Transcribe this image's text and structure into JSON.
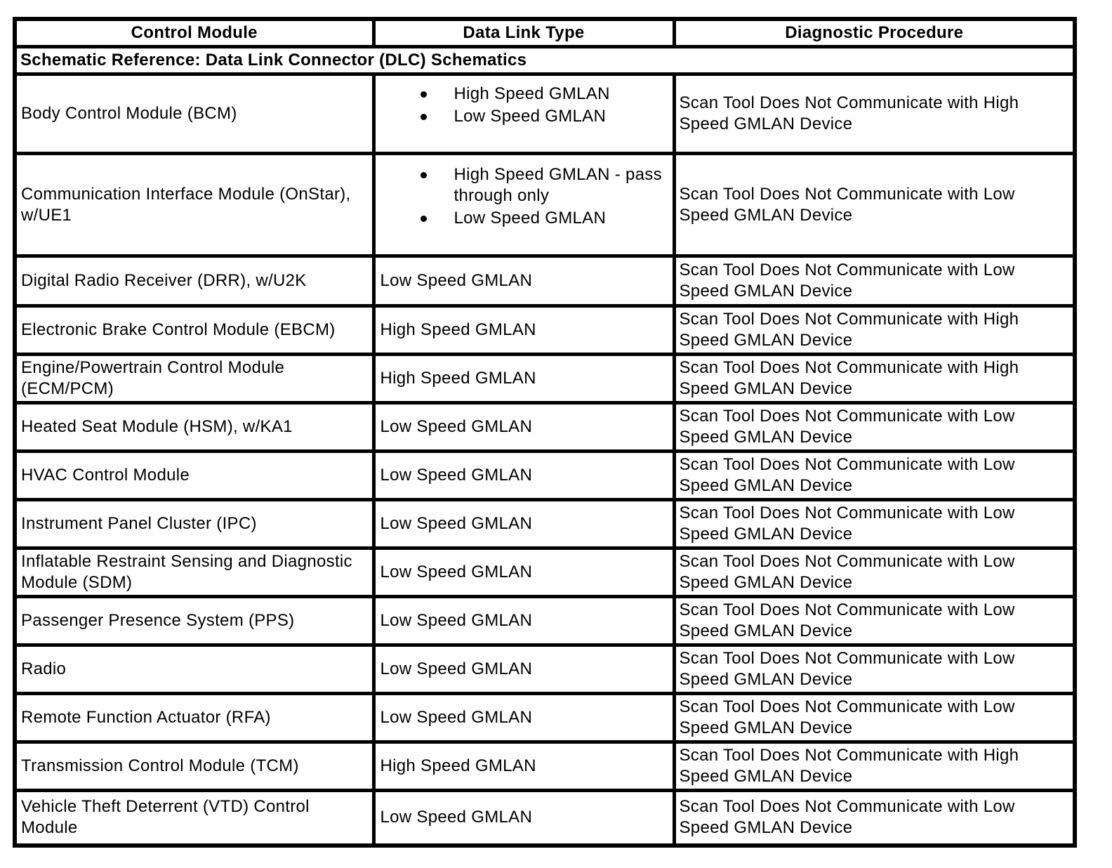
{
  "colors": {
    "background": "#ffffff",
    "text": "#000000",
    "border": "#000000"
  },
  "table": {
    "headers": [
      "Control Module",
      "Data Link Type",
      "Diagnostic Procedure"
    ],
    "schematic_reference": "Schematic Reference: Data Link Connector (DLC) Schematics",
    "rows": [
      {
        "module": "Body Control Module (BCM)",
        "data_link_bullets": [
          "High Speed GMLAN",
          "Low Speed GMLAN"
        ],
        "procedure": "Scan Tool Does Not Communicate with High Speed GMLAN Device"
      },
      {
        "module": "Communication Interface Module (OnStar), w/UE1",
        "data_link_bullets": [
          "High Speed GMLAN - pass through only",
          "Low Speed GMLAN"
        ],
        "procedure": "Scan Tool Does Not Communicate with Low Speed GMLAN Device"
      },
      {
        "module": "Digital Radio Receiver (DRR), w/U2K",
        "data_link": "Low Speed GMLAN",
        "procedure": "Scan Tool Does Not Communicate with Low Speed GMLAN Device"
      },
      {
        "module": "Electronic Brake Control Module (EBCM)",
        "data_link": "High Speed GMLAN",
        "procedure": "Scan Tool Does Not Communicate with High Speed GMLAN Device"
      },
      {
        "module": "Engine/Powertrain Control Module (ECM/PCM)",
        "data_link": "High Speed GMLAN",
        "procedure": "Scan Tool Does Not Communicate with High Speed GMLAN Device"
      },
      {
        "module": "Heated Seat Module (HSM), w/KA1",
        "data_link": "Low Speed GMLAN",
        "procedure": "Scan Tool Does Not Communicate with Low Speed GMLAN Device"
      },
      {
        "module": "HVAC Control Module",
        "data_link": "Low Speed GMLAN",
        "procedure": "Scan Tool Does Not Communicate with Low Speed GMLAN Device"
      },
      {
        "module": "Instrument Panel Cluster (IPC)",
        "data_link": "Low Speed GMLAN",
        "procedure": "Scan Tool Does Not Communicate with Low Speed GMLAN Device"
      },
      {
        "module": "Inflatable Restraint Sensing and Diagnostic Module (SDM)",
        "data_link": "Low Speed GMLAN",
        "procedure": "Scan Tool Does Not Communicate with Low Speed GMLAN Device"
      },
      {
        "module": "Passenger Presence System (PPS)",
        "data_link": "Low Speed GMLAN",
        "procedure": "Scan Tool Does Not Communicate with Low Speed GMLAN Device"
      },
      {
        "module": "Radio",
        "data_link": "Low Speed GMLAN",
        "procedure": "Scan Tool Does Not Communicate with Low Speed GMLAN Device"
      },
      {
        "module": "Remote Function Actuator (RFA)",
        "data_link": "Low Speed GMLAN",
        "procedure": "Scan Tool Does Not Communicate with Low Speed GMLAN Device"
      },
      {
        "module": "Transmission Control Module (TCM)",
        "data_link": "High Speed GMLAN",
        "procedure": "Scan Tool Does Not Communicate with High Speed GMLAN Device"
      },
      {
        "module": "Vehicle Theft Deterrent (VTD) Control Module",
        "data_link": "Low Speed GMLAN",
        "procedure": "Scan Tool Does Not Communicate with Low Speed GMLAN Device"
      }
    ]
  }
}
